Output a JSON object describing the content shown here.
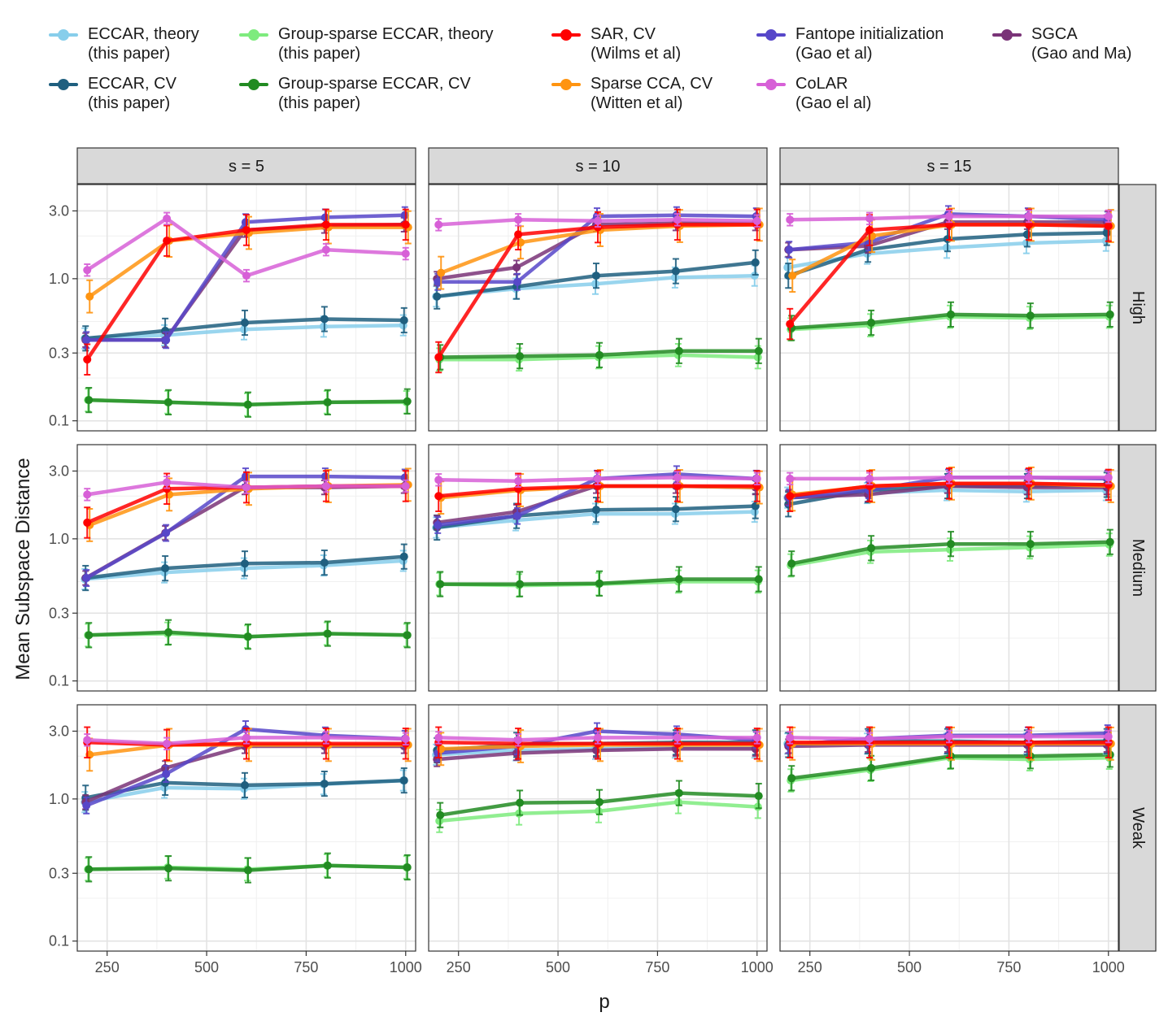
{
  "chart_data": {
    "type": "line",
    "ylabel": "Mean Subspace Distance",
    "xlabel": "p",
    "y_scale": "log10",
    "ylim": [
      0.085,
      4.6
    ],
    "xlim": [
      175,
      1025
    ],
    "x_ticks": [
      250,
      500,
      750,
      1000
    ],
    "x_tick_labels": [
      "250",
      "500",
      "750",
      "1000"
    ],
    "y_ticks": [
      0.1,
      0.3,
      1.0,
      3.0
    ],
    "y_tick_labels": [
      "0.1",
      "0.3",
      "1.0",
      "3.0"
    ],
    "columns": [
      "s = 5",
      "s = 10",
      "s = 15"
    ],
    "rows": [
      "High",
      "Medium",
      "Weak"
    ],
    "x": [
      200,
      400,
      600,
      800,
      1000
    ],
    "series": [
      {
        "id": "eccar_theory",
        "name": "ECCAR, theory",
        "ref": "(this paper)",
        "color": "#87CEEB"
      },
      {
        "id": "eccar_cv",
        "name": "ECCAR, CV",
        "ref": "(this paper)",
        "color": "#1F5F7F"
      },
      {
        "id": "gs_theory",
        "name": "Group-sparse ECCAR, theory",
        "ref": "(this paper)",
        "color": "#7EEB7E"
      },
      {
        "id": "gs_cv",
        "name": "Group-sparse ECCAR, CV",
        "ref": "(this paper)",
        "color": "#228B22"
      },
      {
        "id": "sar_cv",
        "name": "SAR, CV",
        "ref": "(Wilms et al)",
        "color": "#FF0000"
      },
      {
        "id": "scca_cv",
        "name": "Sparse CCA, CV",
        "ref": "(Witten et al)",
        "color": "#FF9410"
      },
      {
        "id": "fantope",
        "name": "Fantope initialization",
        "ref": "(Gao et al)",
        "color": "#5747C9"
      },
      {
        "id": "colar",
        "name": "CoLAR",
        "ref": "(Gao el al)",
        "color": "#D760D7"
      },
      {
        "id": "sgca",
        "name": "SGCA",
        "ref": "(Gao and Ma)",
        "color": "#7A3478"
      }
    ],
    "panels": [
      {
        "col": 0,
        "row": 0,
        "lines": {
          "eccar_theory": [
            0.38,
            0.4,
            0.44,
            0.46,
            0.47
          ],
          "eccar_cv": [
            0.38,
            0.43,
            0.49,
            0.52,
            0.51
          ],
          "gs_theory": [
            0.14,
            0.135,
            0.13,
            0.135,
            0.135
          ],
          "gs_cv": [
            0.14,
            0.135,
            0.13,
            0.135,
            0.137
          ],
          "sar_cv": [
            0.27,
            1.85,
            2.2,
            2.4,
            2.4
          ],
          "scca_cv": [
            0.75,
            1.85,
            2.1,
            2.3,
            2.3
          ],
          "fantope": [
            0.37,
            0.37,
            2.5,
            2.7,
            2.8
          ],
          "colar": [
            1.15,
            2.65,
            1.05,
            1.6,
            1.5
          ],
          "sgca": [
            0.37,
            0.37,
            2.2,
            2.35,
            2.4
          ]
        }
      },
      {
        "col": 1,
        "row": 0,
        "lines": {
          "eccar_theory": [
            0.75,
            0.85,
            0.92,
            1.02,
            1.05
          ],
          "eccar_cv": [
            0.75,
            0.88,
            1.05,
            1.13,
            1.3
          ],
          "gs_theory": [
            0.27,
            0.27,
            0.28,
            0.29,
            0.28
          ],
          "gs_cv": [
            0.28,
            0.285,
            0.29,
            0.31,
            0.31
          ],
          "sar_cv": [
            0.28,
            2.05,
            2.3,
            2.4,
            2.4
          ],
          "scca_cv": [
            1.1,
            1.8,
            2.2,
            2.35,
            2.4
          ],
          "fantope": [
            0.95,
            0.95,
            2.75,
            2.8,
            2.75
          ],
          "colar": [
            2.4,
            2.6,
            2.55,
            2.6,
            2.55
          ],
          "sgca": [
            1.0,
            1.2,
            2.4,
            2.45,
            2.45
          ]
        }
      },
      {
        "col": 2,
        "row": 0,
        "lines": {
          "eccar_theory": [
            1.2,
            1.5,
            1.65,
            1.78,
            1.85
          ],
          "eccar_cv": [
            1.05,
            1.6,
            1.9,
            2.05,
            2.1
          ],
          "gs_theory": [
            0.44,
            0.47,
            0.54,
            0.53,
            0.54
          ],
          "gs_cv": [
            0.45,
            0.49,
            0.56,
            0.55,
            0.56
          ],
          "sar_cv": [
            0.48,
            2.2,
            2.4,
            2.4,
            2.35
          ],
          "scca_cv": [
            1.05,
            2.0,
            2.4,
            2.4,
            2.35
          ],
          "fantope": [
            1.6,
            1.8,
            2.85,
            2.75,
            2.6
          ],
          "colar": [
            2.6,
            2.65,
            2.75,
            2.75,
            2.75
          ],
          "sgca": [
            1.6,
            1.7,
            2.5,
            2.5,
            2.5
          ]
        }
      },
      {
        "col": 0,
        "row": 1,
        "lines": {
          "eccar_theory": [
            0.52,
            0.58,
            0.62,
            0.65,
            0.7
          ],
          "eccar_cv": [
            0.53,
            0.62,
            0.67,
            0.68,
            0.75
          ],
          "gs_theory": [
            0.21,
            0.215,
            0.205,
            0.215,
            0.21
          ],
          "gs_cv": [
            0.21,
            0.22,
            0.205,
            0.215,
            0.21
          ],
          "sar_cv": [
            1.3,
            2.25,
            2.3,
            2.35,
            2.35
          ],
          "scca_cv": [
            1.25,
            2.05,
            2.25,
            2.35,
            2.4
          ],
          "fantope": [
            0.53,
            1.1,
            2.75,
            2.75,
            2.7
          ],
          "colar": [
            2.05,
            2.5,
            2.3,
            2.35,
            2.35
          ],
          "sgca": [
            0.53,
            1.1,
            2.3,
            2.3,
            2.35
          ]
        }
      },
      {
        "col": 1,
        "row": 1,
        "lines": {
          "eccar_theory": [
            1.2,
            1.35,
            1.5,
            1.5,
            1.55
          ],
          "eccar_cv": [
            1.2,
            1.45,
            1.6,
            1.62,
            1.7
          ],
          "gs_theory": [
            0.48,
            0.47,
            0.48,
            0.5,
            0.5
          ],
          "gs_cv": [
            0.48,
            0.48,
            0.485,
            0.52,
            0.52
          ],
          "sar_cv": [
            2.0,
            2.25,
            2.35,
            2.35,
            2.35
          ],
          "scca_cv": [
            1.95,
            2.2,
            2.35,
            2.35,
            2.3
          ],
          "fantope": [
            1.25,
            1.45,
            2.65,
            2.85,
            2.65
          ],
          "colar": [
            2.6,
            2.55,
            2.65,
            2.7,
            2.65
          ],
          "sgca": [
            1.3,
            1.55,
            2.35,
            2.35,
            2.3
          ]
        }
      },
      {
        "col": 2,
        "row": 1,
        "lines": {
          "eccar_theory": [
            1.95,
            2.1,
            2.2,
            2.15,
            2.2
          ],
          "eccar_cv": [
            1.75,
            2.2,
            2.35,
            2.35,
            2.4
          ],
          "gs_theory": [
            0.65,
            0.81,
            0.84,
            0.87,
            0.91
          ],
          "gs_cv": [
            0.67,
            0.86,
            0.92,
            0.92,
            0.95
          ],
          "sar_cv": [
            2.0,
            2.35,
            2.45,
            2.45,
            2.4
          ],
          "scca_cv": [
            2.05,
            2.35,
            2.45,
            2.45,
            2.35
          ],
          "fantope": [
            1.95,
            2.2,
            2.7,
            2.7,
            2.65
          ],
          "colar": [
            2.65,
            2.65,
            2.7,
            2.7,
            2.7
          ],
          "sgca": [
            1.95,
            2.05,
            2.35,
            2.3,
            2.3
          ]
        }
      },
      {
        "col": 0,
        "row": 2,
        "lines": {
          "eccar_theory": [
            0.95,
            1.2,
            1.18,
            1.27,
            1.35
          ],
          "eccar_cv": [
            1.02,
            1.3,
            1.25,
            1.28,
            1.35
          ],
          "gs_theory": [
            0.32,
            0.33,
            0.32,
            0.34,
            0.33
          ],
          "gs_cv": [
            0.32,
            0.325,
            0.315,
            0.34,
            0.33
          ],
          "sar_cv": [
            2.5,
            2.4,
            2.45,
            2.45,
            2.45
          ],
          "scca_cv": [
            2.05,
            2.4,
            2.4,
            2.4,
            2.4
          ],
          "fantope": [
            0.9,
            1.5,
            3.1,
            2.8,
            2.65
          ],
          "colar": [
            2.6,
            2.45,
            2.7,
            2.7,
            2.65
          ],
          "sgca": [
            0.95,
            1.65,
            2.35,
            2.35,
            2.35
          ]
        }
      },
      {
        "col": 1,
        "row": 2,
        "lines": {
          "eccar_theory": [
            2.05,
            2.2,
            2.25,
            2.3,
            2.3
          ],
          "eccar_cv": [
            2.2,
            2.4,
            2.45,
            2.5,
            2.5
          ],
          "gs_theory": [
            0.7,
            0.79,
            0.82,
            0.95,
            0.88
          ],
          "gs_cv": [
            0.77,
            0.94,
            0.95,
            1.1,
            1.05
          ],
          "sar_cv": [
            2.5,
            2.45,
            2.45,
            2.45,
            2.45
          ],
          "scca_cv": [
            2.25,
            2.35,
            2.4,
            2.4,
            2.4
          ],
          "fantope": [
            2.1,
            2.35,
            3.0,
            2.85,
            2.6
          ],
          "colar": [
            2.7,
            2.6,
            2.7,
            2.7,
            2.7
          ],
          "sgca": [
            1.9,
            2.1,
            2.2,
            2.25,
            2.25
          ]
        }
      },
      {
        "col": 2,
        "row": 2,
        "lines": {
          "eccar_theory": [
            2.45,
            2.45,
            2.45,
            2.45,
            2.45
          ],
          "eccar_cv": [
            2.4,
            2.55,
            2.55,
            2.5,
            2.55
          ],
          "gs_theory": [
            1.35,
            1.6,
            1.95,
            1.9,
            1.95
          ],
          "gs_cv": [
            1.4,
            1.65,
            2.0,
            2.0,
            2.05
          ],
          "sar_cv": [
            2.5,
            2.5,
            2.5,
            2.5,
            2.5
          ],
          "scca_cv": [
            2.45,
            2.45,
            2.45,
            2.45,
            2.45
          ],
          "fantope": [
            2.4,
            2.65,
            2.8,
            2.8,
            2.9
          ],
          "colar": [
            2.7,
            2.65,
            2.75,
            2.75,
            2.75
          ],
          "sgca": [
            2.35,
            2.4,
            2.4,
            2.4,
            2.4
          ]
        }
      }
    ]
  }
}
